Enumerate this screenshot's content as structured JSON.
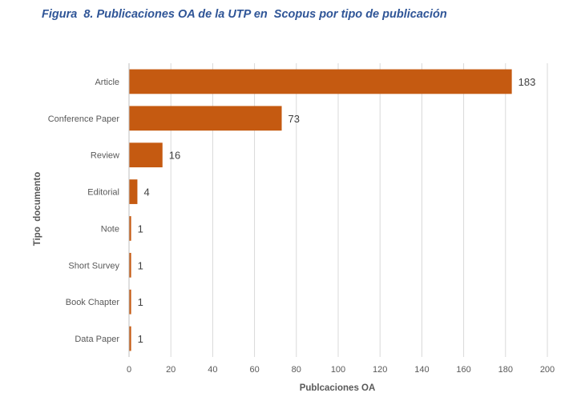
{
  "figure": {
    "title": "Figura  8. Publicaciones OA de la UTP en  Scopus por tipo de publicación"
  },
  "chart_data": {
    "type": "bar",
    "orientation": "horizontal",
    "categories": [
      "Article",
      "Conference Paper",
      "Review",
      "Editorial",
      "Note",
      "Short Survey",
      "Book Chapter",
      "Data Paper"
    ],
    "values": [
      183,
      73,
      16,
      4,
      1,
      1,
      1,
      1
    ],
    "xlabel": "Publcaciones OA",
    "ylabel": "Tipo  documento",
    "xlim": [
      0,
      200
    ],
    "xticks": [
      0,
      20,
      40,
      60,
      80,
      100,
      120,
      140,
      160,
      180,
      200
    ],
    "grid": true,
    "data_labels": true,
    "bar_color": "#C55A11",
    "grid_color": "#D9D9D9"
  }
}
